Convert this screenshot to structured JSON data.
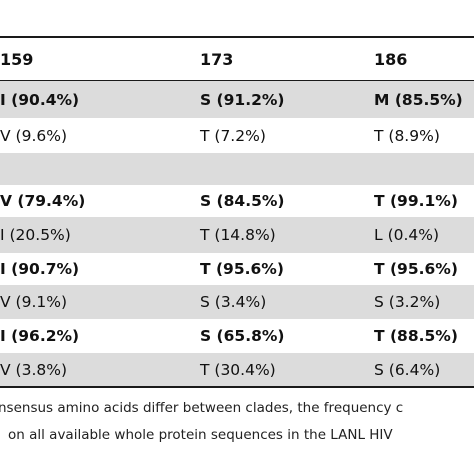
{
  "table": {
    "columns": [
      "159",
      "173",
      "186"
    ],
    "rows": [
      {
        "shaded": true,
        "bold": true,
        "cells": [
          "I (90.4%)",
          "S (91.2%)",
          "M (85.5%)"
        ]
      },
      {
        "shaded": false,
        "bold": false,
        "cells": [
          "V (9.6%)",
          "T (7.2%)",
          "T (8.9%)"
        ]
      },
      {
        "shaded": true,
        "bold": false,
        "cells": [
          "",
          "",
          ""
        ]
      },
      {
        "shaded": false,
        "bold": true,
        "cells": [
          "V (79.4%)",
          "S (84.5%)",
          "T (99.1%)"
        ]
      },
      {
        "shaded": true,
        "bold": false,
        "cells": [
          "I (20.5%)",
          "T (14.8%)",
          "L (0.4%)"
        ]
      },
      {
        "shaded": false,
        "bold": true,
        "cells": [
          "I (90.7%)",
          "T (95.6%)",
          "T (95.6%)"
        ]
      },
      {
        "shaded": true,
        "bold": false,
        "cells": [
          "V (9.1%)",
          "S (3.4%)",
          "S (3.2%)"
        ]
      },
      {
        "shaded": false,
        "bold": true,
        "cells": [
          "I (96.2%)",
          "S (65.8%)",
          "T (88.5%)"
        ]
      },
      {
        "shaded": true,
        "bold": false,
        "cells": [
          "V (3.8%)",
          "T (30.4%)",
          "S (6.4%)"
        ]
      }
    ]
  },
  "footnote": {
    "line1": "nsensus amino acids differ between clades, the frequency c",
    "line2": "on all available whole protein sequences in the LANL HIV"
  }
}
